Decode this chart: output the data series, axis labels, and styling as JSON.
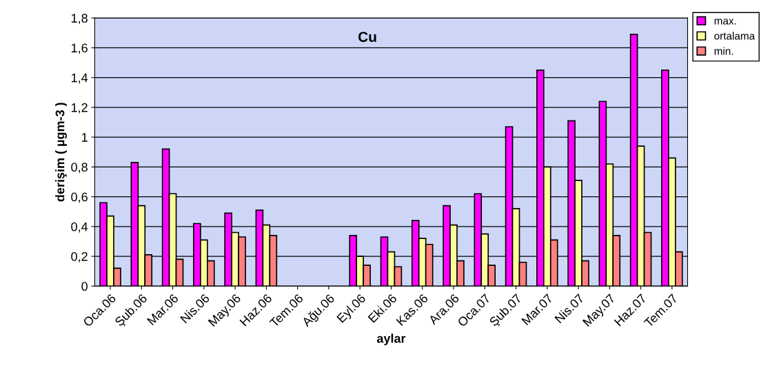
{
  "chart_data": {
    "type": "bar",
    "title": "Cu",
    "xlabel": "aylar",
    "ylabel": "derişim ( µgm-3 )",
    "categories": [
      "Oca.06",
      "Şub.06",
      "Mar.06",
      "Nis.06",
      "May.06",
      "Haz.06",
      "Tem.06",
      "Ağu.06",
      "Eyl.06",
      "Eki.06",
      "Kas.06",
      "Ara.06",
      "Oca.07",
      "Şub.07",
      "Mar.07",
      "Nis.07",
      "May.07",
      "Haz.07",
      "Tem.07"
    ],
    "series": [
      {
        "name": "max.",
        "color": "#ff00ff",
        "values": [
          0.56,
          0.83,
          0.92,
          0.42,
          0.49,
          0.51,
          null,
          null,
          0.34,
          0.33,
          0.44,
          0.54,
          0.62,
          1.07,
          1.45,
          1.11,
          1.24,
          1.69,
          1.45
        ]
      },
      {
        "name": "ortalama",
        "color": "#ffff99",
        "values": [
          0.47,
          0.54,
          0.62,
          0.31,
          0.36,
          0.41,
          null,
          null,
          0.2,
          0.23,
          0.32,
          0.41,
          0.35,
          0.52,
          0.8,
          0.71,
          0.82,
          0.94,
          0.86
        ]
      },
      {
        "name": "min.",
        "color": "#ff8080",
        "values": [
          0.12,
          0.21,
          0.18,
          0.17,
          0.33,
          0.34,
          null,
          null,
          0.14,
          0.13,
          0.28,
          0.17,
          0.14,
          0.16,
          0.31,
          0.17,
          0.34,
          0.36,
          0.23
        ]
      }
    ],
    "ylim": [
      0,
      1.8
    ],
    "yticks": [
      0,
      {
        "value": 0.2,
        "label": "0,2"
      },
      {
        "value": 0.4,
        "label": "0,4"
      },
      {
        "value": 0.6,
        "label": "0,6"
      },
      {
        "value": 0.8,
        "label": "0,8"
      },
      1,
      {
        "value": 1.2,
        "label": "1,2"
      },
      {
        "value": 1.4,
        "label": "1,4"
      },
      {
        "value": 1.6,
        "label": "1,6"
      },
      {
        "value": 1.8,
        "label": "1,8"
      }
    ],
    "grid": "y",
    "legend": "top right"
  }
}
